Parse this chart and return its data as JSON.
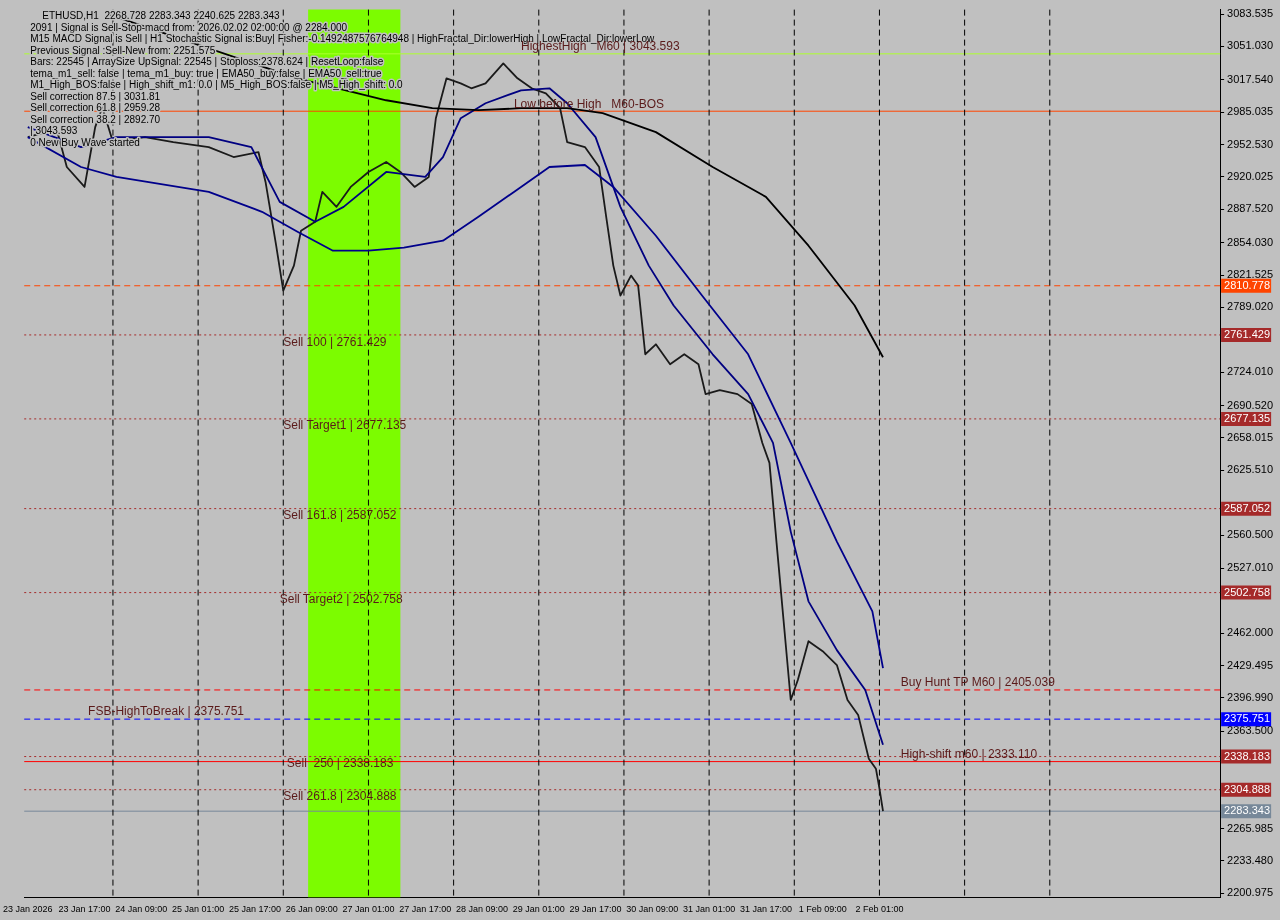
{
  "chart_data": {
    "type": "line",
    "title": "ETHUSD,H1  2268.728 2283.343 2240.625 2283.343",
    "xlim": [
      "2026-01-23T00:00",
      "2026-02-06T01:00"
    ],
    "xticks": [
      {
        "value": "2026-01-23T01:00",
        "label": "23 Jan 2026"
      },
      {
        "value": "2026-01-23T17:00",
        "label": "23 Jan 17:00"
      },
      {
        "value": "2026-01-24T09:00",
        "label": "24 Jan 09:00"
      },
      {
        "value": "2026-01-25T01:00",
        "label": "25 Jan 01:00"
      },
      {
        "value": "2026-01-25T17:00",
        "label": "25 Jan 17:00"
      },
      {
        "value": "2026-01-26T09:00",
        "label": "26 Jan 09:00"
      },
      {
        "value": "2026-01-27T01:00",
        "label": "27 Jan 01:00"
      },
      {
        "value": "2026-01-27T17:00",
        "label": "27 Jan 17:00"
      },
      {
        "value": "2026-01-28T09:00",
        "label": "28 Jan 09:00"
      },
      {
        "value": "2026-01-29T01:00",
        "label": "29 Jan 01:00"
      },
      {
        "value": "2026-01-29T17:00",
        "label": "29 Jan 17:00"
      },
      {
        "value": "2026-01-30T09:00",
        "label": "30 Jan 09:00"
      },
      {
        "value": "2026-01-31T01:00",
        "label": "31 Jan 01:00"
      },
      {
        "value": "2026-01-31T17:00",
        "label": "31 Jan 17:00"
      },
      {
        "value": "2026-02-01T09:00",
        "label": "1 Feb 09:00"
      },
      {
        "value": "2026-02-02T01:00",
        "label": "2 Feb 01:00"
      }
    ],
    "ylim": [
      2197,
      3088
    ],
    "yticks": [
      {
        "value": 3083.535,
        "label": "3083.535"
      },
      {
        "value": 3051.03,
        "label": "3051.030"
      },
      {
        "value": 3017.54,
        "label": "3017.540"
      },
      {
        "value": 2985.035,
        "label": "2985.035"
      },
      {
        "value": 2952.53,
        "label": "2952.530"
      },
      {
        "value": 2920.025,
        "label": "2920.025"
      },
      {
        "value": 2887.52,
        "label": "2887.520"
      },
      {
        "value": 2854.03,
        "label": "2854.030"
      },
      {
        "value": 2821.525,
        "label": "2821.525"
      },
      {
        "value": 2789.02,
        "label": "2789.020"
      },
      {
        "value": 2724.01,
        "label": "2724.010"
      },
      {
        "value": 2690.52,
        "label": "2690.520"
      },
      {
        "value": 2658.015,
        "label": "2658.015"
      },
      {
        "value": 2625.51,
        "label": "2625.510"
      },
      {
        "value": 2560.5,
        "label": "2560.500"
      },
      {
        "value": 2527.01,
        "label": "2527.010"
      },
      {
        "value": 2462,
        "label": "2462.000"
      },
      {
        "value": 2429.495,
        "label": "2429.495"
      },
      {
        "value": 2396.99,
        "label": "2396.990"
      },
      {
        "value": 2363.5,
        "label": "2363.500"
      },
      {
        "value": 2265.985,
        "label": "2265.985"
      },
      {
        "value": 2233.48,
        "label": "2233.480"
      },
      {
        "value": 2200.975,
        "label": "2200.975"
      }
    ],
    "grid": false,
    "legend": false,
    "marker": "none",
    "series": [
      {
        "color": "#000000",
        "x": [
          "2026-01-24T00:00",
          "2026-01-25T04:00",
          "2026-01-26T05:00",
          "2026-01-27T06:00",
          "2026-01-27T19:00",
          "2026-01-28T08:00",
          "2026-01-28T20:00",
          "2026-01-29T09:00",
          "2026-01-29T19:00",
          "2026-01-30T10:00",
          "2026-01-31T02:00",
          "2026-01-31T17:00",
          "2026-02-01T05:00",
          "2026-02-01T18:00",
          "2026-02-02T02:00"
        ],
        "values": [
          3083,
          3049,
          3019,
          2997,
          2989,
          2987,
          2989,
          2989,
          2984,
          2965,
          2930,
          2900,
          2851,
          2791,
          2739
        ]
      },
      {
        "color": "#00008b",
        "x": [
          "2026-01-23T01:00",
          "2026-01-23T16:00",
          "2026-01-24T02:00",
          "2026-01-25T04:00",
          "2026-01-25T19:00",
          "2026-01-26T05:00",
          "2026-01-26T15:00",
          "2026-01-27T01:00",
          "2026-01-27T11:00",
          "2026-01-27T22:00",
          "2026-01-28T08:00",
          "2026-01-28T18:00",
          "2026-01-29T04:00",
          "2026-01-29T14:00",
          "2026-01-29T22:00",
          "2026-01-30T10:00",
          "2026-01-30T23:00",
          "2026-01-31T12:00",
          "2026-02-01T00:00",
          "2026-02-01T13:00",
          "2026-02-01T23:00",
          "2026-02-02T02:00"
        ],
        "values": [
          2960,
          2930,
          2920,
          2905,
          2885,
          2865,
          2846,
          2846,
          2849,
          2856,
          2880,
          2905,
          2930,
          2932,
          2910,
          2861,
          2801,
          2742,
          2653,
          2554,
          2484,
          2427
        ]
      },
      {
        "color": "#000080",
        "x": [
          "2026-01-23T01:00",
          "2026-01-23T16:00",
          "2026-01-24T02:00",
          "2026-01-25T04:00",
          "2026-01-25T16:00",
          "2026-01-26T00:00",
          "2026-01-26T10:00",
          "2026-01-26T18:00",
          "2026-01-27T06:00",
          "2026-01-27T17:00",
          "2026-01-27T22:00",
          "2026-01-28T03:00",
          "2026-01-28T10:00",
          "2026-01-28T20:00",
          "2026-01-29T04:00",
          "2026-01-29T09:00",
          "2026-01-29T17:00",
          "2026-01-30T00:00",
          "2026-01-30T08:00",
          "2026-01-30T15:00",
          "2026-01-31T02:00",
          "2026-01-31T12:00",
          "2026-01-31T19:00",
          "2026-02-01T00:00",
          "2026-02-01T05:00",
          "2026-02-01T13:00",
          "2026-02-01T21:00",
          "2026-02-02T02:00"
        ],
        "values": [
          2970,
          2950,
          2960,
          2960,
          2950,
          2895,
          2875,
          2890,
          2925,
          2920,
          2940,
          2979,
          2994,
          3007,
          3009,
          2994,
          2960,
          2890,
          2831,
          2791,
          2742,
          2702,
          2653,
          2564,
          2494,
          2445,
          2405,
          2350
        ]
      },
      {
        "color": "#1a1a1a",
        "x": [
          "2026-01-23T01:00",
          "2026-01-23T06:00",
          "2026-01-23T09:00",
          "2026-01-23T12:00",
          "2026-01-23T17:00",
          "2026-01-23T20:00",
          "2026-01-23T22:00",
          "2026-01-24T01:00",
          "2026-01-24T10:00",
          "2026-01-24T18:00",
          "2026-01-25T04:00",
          "2026-01-25T11:00",
          "2026-01-25T18:00",
          "2026-01-25T20:00",
          "2026-01-25T23:00",
          "2026-01-26T01:00",
          "2026-01-26T04:00",
          "2026-01-26T06:00",
          "2026-01-26T10:00",
          "2026-01-26T12:00",
          "2026-01-26T16:00",
          "2026-01-26T20:00",
          "2026-01-27T01:00",
          "2026-01-27T06:00",
          "2026-01-27T10:00",
          "2026-01-27T14:00",
          "2026-01-27T18:00",
          "2026-01-27T20:00",
          "2026-01-27T23:00",
          "2026-01-28T03:00",
          "2026-01-28T06:00",
          "2026-01-28T10:00",
          "2026-01-28T15:00",
          "2026-01-28T19:00",
          "2026-01-28T23:00",
          "2026-01-29T03:00",
          "2026-01-29T07:00",
          "2026-01-29T09:00",
          "2026-01-29T14:00",
          "2026-01-29T18:00",
          "2026-01-29T20:00",
          "2026-01-29T22:00",
          "2026-01-30T00:00",
          "2026-01-30T03:00",
          "2026-01-30T05:00",
          "2026-01-30T07:00",
          "2026-01-30T10:00",
          "2026-01-30T14:00",
          "2026-01-30T18:00",
          "2026-01-30T22:00",
          "2026-01-31T00:00",
          "2026-01-31T04:00",
          "2026-01-31T09:00",
          "2026-01-31T13:00",
          "2026-01-31T16:00",
          "2026-01-31T18:00",
          "2026-01-31T20:00",
          "2026-01-31T22:00",
          "2026-02-01T00:00",
          "2026-02-01T02:00",
          "2026-02-01T05:00",
          "2026-02-01T09:00",
          "2026-02-01T13:00",
          "2026-02-01T16:00",
          "2026-02-01T19:00",
          "2026-02-01T22:00",
          "2026-02-02T00:00",
          "2026-02-02T01:00",
          "2026-02-02T02:00"
        ],
        "values": [
          2960,
          2965,
          2970,
          2930,
          2910,
          2970,
          2990,
          2955,
          2960,
          2955,
          2950,
          2940,
          2945,
          2915,
          2851,
          2806,
          2831,
          2866,
          2875,
          2905,
          2890,
          2910,
          2925,
          2935,
          2925,
          2910,
          2920,
          2979,
          3019,
          3014,
          3009,
          3014,
          3034,
          3019,
          3009,
          3004,
          2989,
          2955,
          2950,
          2930,
          2880,
          2831,
          2801,
          2821,
          2811,
          2742,
          2752,
          2732,
          2742,
          2732,
          2702,
          2706,
          2702,
          2692,
          2653,
          2633,
          2553,
          2474,
          2395,
          2415,
          2454,
          2444,
          2430,
          2395,
          2380,
          2336,
          2326,
          2306,
          2283.343
        ]
      }
    ],
    "bands": [
      {
        "axis": "x",
        "from": "2026-01-26T08:00",
        "to": "2026-01-27T10:00",
        "color": "#7cfc00"
      }
    ],
    "ref_lines": [
      {
        "axis": "y",
        "value": 2810.778,
        "label": "2810.778",
        "color": "#ff4500",
        "line_style": "dashed"
      },
      {
        "axis": "y",
        "value": 2761.429,
        "label": "2761.429",
        "color": "#a52a2a",
        "line_style": "dotted"
      },
      {
        "axis": "y",
        "value": 2677.135,
        "label": "2677.135",
        "color": "#a52a2a",
        "line_style": "dotted"
      },
      {
        "axis": "y",
        "value": 2587.052,
        "label": "2587.052",
        "color": "#a52a2a",
        "line_style": "dotted"
      },
      {
        "axis": "y",
        "value": 2502.758,
        "label": "2502.758",
        "color": "#a52a2a",
        "line_style": "dotted"
      },
      {
        "axis": "y",
        "value": 2375.751,
        "label": "2375.751",
        "color": "#0000ff",
        "line_style": "dashed"
      },
      {
        "axis": "y",
        "value": 2338.183,
        "label": "2338.183",
        "color": "#a52a2a",
        "line_style": "dotted"
      },
      {
        "axis": "y",
        "value": 2304.888,
        "label": "2304.888",
        "color": "#a52a2a",
        "line_style": "dotted"
      },
      {
        "axis": "y",
        "value": 2283.343,
        "label": "2283.343",
        "color": "#778899",
        "line_style": "solid"
      },
      {
        "axis": "y",
        "value": 2405.039,
        "color": "#ff0000",
        "line_style": "dashed"
      },
      {
        "axis": "y",
        "value": 3043.593,
        "color": "#adff2f",
        "line_style": "solid"
      },
      {
        "axis": "y",
        "value": 2986,
        "color": "#ff4500",
        "line_style": "solid"
      },
      {
        "axis": "y",
        "value": 2333.11,
        "color": "#ff0000",
        "line_style": "solid"
      },
      {
        "axis": "x",
        "value": "2026-01-24T01:00",
        "color": "#000000",
        "line_style": "dashed"
      },
      {
        "axis": "x",
        "value": "2026-01-25T01:00",
        "color": "#000000",
        "line_style": "dashed"
      },
      {
        "axis": "x",
        "value": "2026-01-26T01:00",
        "color": "#000000",
        "line_style": "dashed"
      },
      {
        "axis": "x",
        "value": "2026-01-27T01:00",
        "color": "#000000",
        "line_style": "dashed"
      },
      {
        "axis": "x",
        "value": "2026-01-28T01:00",
        "color": "#000000",
        "line_style": "dashed"
      },
      {
        "axis": "x",
        "value": "2026-01-29T01:00",
        "color": "#000000",
        "line_style": "dashed"
      },
      {
        "axis": "x",
        "value": "2026-01-30T01:00",
        "color": "#000000",
        "line_style": "dashed"
      },
      {
        "axis": "x",
        "value": "2026-01-31T01:00",
        "color": "#000000",
        "line_style": "dashed"
      },
      {
        "axis": "x",
        "value": "2026-02-01T01:00",
        "color": "#000000",
        "line_style": "dashed"
      },
      {
        "axis": "x",
        "value": "2026-02-02T01:00",
        "color": "#000000",
        "line_style": "dashed"
      },
      {
        "axis": "x",
        "value": "2026-02-03T01:00",
        "color": "#000000",
        "line_style": "dashed"
      },
      {
        "axis": "x",
        "value": "2026-02-04T01:00",
        "color": "#000000",
        "line_style": "dashed"
      }
    ],
    "annotations": [
      "2091 | Signal is Sell-Stop-macd from: 2026.02.02 02:00:00 @ 2284.000",
      "M15 MACD Signal is Sell | H1 Stochastic Signal is:Buy| Fisher:-0.1492487576764948 | HighFractal_Dir:lowerHigh | LowFractal_Dir:lowerLow",
      "Previous Signal :Sell-New from: 2251.575",
      "Bars: 22545 | ArraySize UpSignal: 22545 | Stoploss:2378.624 | ResetLoop:false",
      "tema_m1_sell: false | tema_m1_buy: true | EMA50_buy:false | EMA50_sell:true",
      "M1_High_BOS:false | High_shift_m1: 0.0 | M5_High_BOS:false | M5_High_shift: 0.0",
      "Sell correction 87.5 | 3031.81",
      "Sell correction 61.8 | 2959.28",
      "Sell correction 38.2 | 2892.70",
      "| 3043.593",
      "0 New Buy Wave started",
      {
        "text": "Sell 100 | 2761.429",
        "x": "2026-01-26T01:00",
        "y": 2747
      },
      {
        "text": "Sell Target1 | 2677.135",
        "x": "2026-01-26T01:00",
        "y": 2663
      },
      {
        "text": "Sell 161.8 | 2587.052",
        "x": "2026-01-26T01:00",
        "y": 2573
      },
      {
        "text": "Sell Target2 | 2502.758",
        "x": "2026-01-26T00:00",
        "y": 2489
      },
      {
        "text": "Sell  250 | 2338.183",
        "x": "2026-01-26T02:00",
        "y": 2324
      },
      {
        "text": "Sell 261.8 | 2304.888",
        "x": "2026-01-26T01:00",
        "y": 2291
      },
      {
        "text": "FSB-HighToBreak | 2375.751",
        "x": "2026-01-23T18:00",
        "y": 2375.751
      },
      {
        "text": "Buy Hunt TP M60 | 2405.039",
        "x": "2026-02-02T07:00",
        "y": 2405.039
      },
      {
        "text": "High-shift m60 | 2333.110",
        "x": "2026-02-02T07:00",
        "y": 2333.11
      },
      {
        "text": "HighestHigh   M60 | 3043.593",
        "x": "2026-01-28T20:00",
        "y": 3043.593
      },
      {
        "text": "Low before High   M60-BOS",
        "x": "2026-01-28T18:00",
        "y": 2986
      }
    ]
  }
}
